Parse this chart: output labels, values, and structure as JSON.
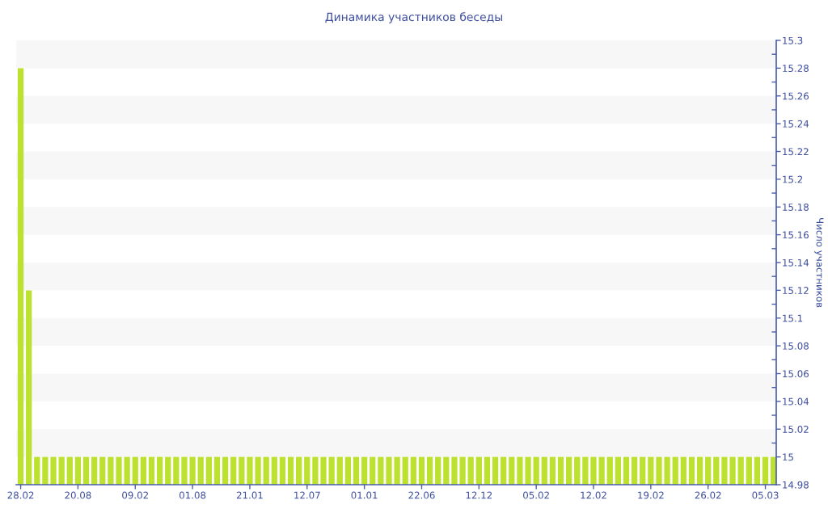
{
  "chart_data": {
    "type": "bar",
    "title": "Динамика участников беседы",
    "ylabel": "Число участников",
    "categories": [
      "28.02",
      null,
      null,
      null,
      null,
      null,
      null,
      "20.08",
      null,
      null,
      null,
      null,
      null,
      null,
      "09.02",
      null,
      null,
      null,
      null,
      null,
      null,
      "01.08",
      null,
      null,
      null,
      null,
      null,
      null,
      "21.01",
      null,
      null,
      null,
      null,
      null,
      null,
      "12.07",
      null,
      null,
      null,
      null,
      null,
      null,
      "01.01",
      null,
      null,
      null,
      null,
      null,
      null,
      "22.06",
      null,
      null,
      null,
      null,
      null,
      null,
      "12.12",
      null,
      null,
      null,
      null,
      null,
      null,
      "05.02",
      null,
      null,
      null,
      null,
      null,
      null,
      "12.02",
      null,
      null,
      null,
      null,
      null,
      null,
      "19.02",
      null,
      null,
      null,
      null,
      null,
      null,
      "26.02",
      null,
      null,
      null,
      null,
      null,
      null,
      "05.03",
      null
    ],
    "values": [
      15.28,
      15.12,
      15,
      15,
      15,
      15,
      15,
      15,
      15,
      15,
      15,
      15,
      15,
      15,
      15,
      15,
      15,
      15,
      15,
      15,
      15,
      15,
      15,
      15,
      15,
      15,
      15,
      15,
      15,
      15,
      15,
      15,
      15,
      15,
      15,
      15,
      15,
      15,
      15,
      15,
      15,
      15,
      15,
      15,
      15,
      15,
      15,
      15,
      15,
      15,
      15,
      15,
      15,
      15,
      15,
      15,
      15,
      15,
      15,
      15,
      15,
      15,
      15,
      15,
      15,
      15,
      15,
      15,
      15,
      15,
      15,
      15,
      15,
      15,
      15,
      15,
      15,
      15,
      15,
      15,
      15,
      15,
      15,
      15,
      15,
      15,
      15,
      15,
      15,
      15,
      15,
      15,
      15
    ],
    "color": "#bde12f",
    "ylim": [
      14.98,
      15.3
    ],
    "yticks": [
      14.98,
      15,
      15.02,
      15.04,
      15.06,
      15.08,
      15.1,
      15.12,
      15.14,
      15.16,
      15.18,
      15.2,
      15.22,
      15.24,
      15.26,
      15.28,
      15.3
    ],
    "bands": [
      {
        "axis": "y",
        "from": 15,
        "to": 15.02,
        "color": "#f7f7f7"
      },
      {
        "axis": "y",
        "from": 15.04,
        "to": 15.06,
        "color": "#f7f7f7"
      },
      {
        "axis": "y",
        "from": 15.08,
        "to": 15.1,
        "color": "#f7f7f7"
      },
      {
        "axis": "y",
        "from": 15.12,
        "to": 15.14,
        "color": "#f7f7f7"
      },
      {
        "axis": "y",
        "from": 15.16,
        "to": 15.18,
        "color": "#f7f7f7"
      },
      {
        "axis": "y",
        "from": 15.2,
        "to": 15.22,
        "color": "#f7f7f7"
      },
      {
        "axis": "y",
        "from": 15.24,
        "to": 15.26,
        "color": "#f7f7f7"
      },
      {
        "axis": "y",
        "from": 15.28,
        "to": 15.3,
        "color": "#f7f7f7"
      }
    ]
  }
}
